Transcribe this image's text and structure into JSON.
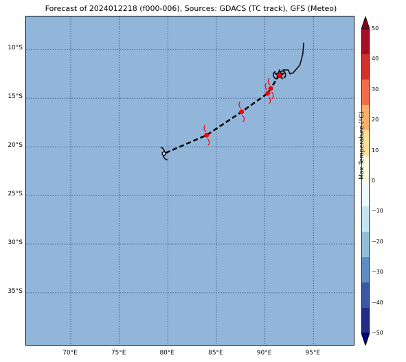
{
  "title": "Forecast of 2024012218 (f000-006), Sources: GDACS (TC track), GFS (Meteo)",
  "map": {
    "lat_labels": [
      "10°S",
      "15°S",
      "20°S",
      "25°S",
      "30°S",
      "35°S"
    ],
    "lon_labels": [
      "70°E",
      "75°E",
      "80°E",
      "85°E",
      "90°E",
      "95°E"
    ],
    "ocean_color": "#92b5da",
    "gridline_style": "dotted"
  },
  "track": {
    "past_track": [
      [
        94.0,
        -9.3
      ],
      [
        93.9,
        -10.5
      ],
      [
        93.6,
        -11.6
      ],
      [
        92.9,
        -12.4
      ],
      [
        92.6,
        -12.5
      ],
      [
        92.4,
        -12.1
      ],
      [
        91.9,
        -12.1
      ],
      [
        91.5,
        -12.4
      ]
    ],
    "current_position": [
      91.5,
      -12.6
    ],
    "forecast_track": [
      [
        91.5,
        -12.6
      ],
      [
        90.6,
        -14.0
      ],
      [
        90.3,
        -14.5
      ],
      [
        87.6,
        -16.4
      ],
      [
        84.0,
        -18.8
      ],
      [
        79.6,
        -20.7
      ]
    ],
    "forecast_markers": [
      [
        90.6,
        -14.0
      ],
      [
        90.3,
        -14.5
      ],
      [
        87.6,
        -16.4
      ],
      [
        84.0,
        -18.8
      ]
    ],
    "low_marker": [
      79.6,
      -20.7
    ],
    "marker_color": "#ff0000",
    "track_color": "#000000"
  },
  "colorbar": {
    "title": "Max Temperature (°C)",
    "tick_labels": [
      "50",
      "40",
      "30",
      "20",
      "10",
      "0",
      "−10",
      "−20",
      "−30",
      "−40",
      "−50"
    ],
    "colors": [
      "#000080",
      "#232b88",
      "#3a57a5",
      "#5e8dc4",
      "#93bedb",
      "#c4e4f0",
      "#eef8fb",
      "#fffde1",
      "#fedf9c",
      "#fdaf6a",
      "#f26c49",
      "#d0312a",
      "#a50f26",
      "#800020"
    ]
  }
}
